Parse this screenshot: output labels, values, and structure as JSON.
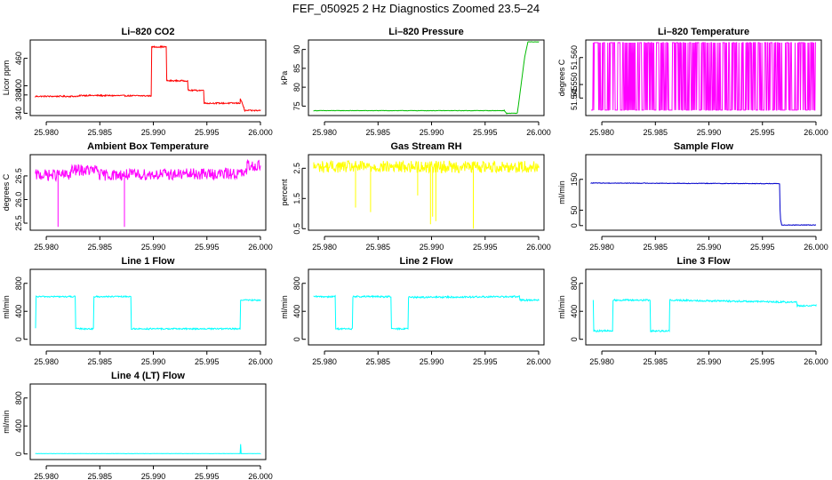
{
  "title": "FEF_050925  2 Hz Diagnostics Zoomed 23.5–24",
  "chart_data": [
    {
      "type": "line",
      "title": "Li–820 CO2",
      "ylabel": "Licor ppm",
      "color": "#ff0000",
      "xlim": [
        25.9785,
        26.0005
      ],
      "ylim": [
        335,
        500
      ],
      "xticks": [
        "25.980",
        "25.985",
        "25.990",
        "25.995",
        "26.000"
      ],
      "yticks": [
        "340",
        "380",
        "400",
        "460"
      ],
      "ytick_values": [
        340,
        380,
        400,
        460
      ],
      "series": [
        {
          "noise": 1.5,
          "x": [
            25.979,
            25.983,
            25.9832,
            25.9898,
            25.98985,
            25.9912,
            25.99125,
            25.9932,
            25.99325,
            25.9947,
            25.99475,
            25.9981,
            25.99812,
            25.99845,
            25.9985,
            26.0
          ],
          "y": [
            377,
            377,
            379,
            378,
            485,
            485,
            411,
            411,
            390,
            390,
            362,
            362,
            372,
            353,
            346,
            346
          ]
        }
      ]
    },
    {
      "type": "line",
      "title": "Li–820 Pressure",
      "ylabel": "kPa",
      "color": "#00bb00",
      "xlim": [
        25.9785,
        26.0005
      ],
      "ylim": [
        72.5,
        92.5
      ],
      "xticks": [
        "25.980",
        "25.985",
        "25.990",
        "25.995",
        "26.000"
      ],
      "yticks": [
        "75",
        "80",
        "85",
        "90"
      ],
      "ytick_values": [
        75,
        80,
        85,
        90
      ],
      "series": [
        {
          "noise": 0.05,
          "x": [
            25.979,
            25.9968,
            25.997,
            25.998,
            25.9981,
            25.9987,
            25.999,
            26.0
          ],
          "y": [
            73.8,
            73.8,
            73.1,
            73.1,
            75,
            88,
            92,
            92
          ]
        }
      ]
    },
    {
      "type": "line",
      "title": "Li–820 Temperature",
      "ylabel": "degrees C",
      "color": "#ff00ff",
      "xlim": [
        25.9785,
        26.0005
      ],
      "ylim": [
        51.5385,
        51.5665
      ],
      "xticks": [
        "25.980",
        "25.985",
        "25.990",
        "25.995",
        "26.000"
      ],
      "yticks": [
        "51.545",
        "51.550",
        "51.560"
      ],
      "ytick_values": [
        51.545,
        51.55,
        51.56
      ],
      "series": [
        {
          "pattern": "toggle",
          "low": 51.5405,
          "high": 51.5655,
          "x": [
            25.979,
            26.0
          ],
          "y": [
            51.5405,
            51.5655
          ]
        }
      ]
    },
    {
      "type": "line",
      "title": "Ambient Box Temperature",
      "ylabel": "degrees C",
      "color": "#ff00ff",
      "xlim": [
        25.9785,
        26.0005
      ],
      "ylim": [
        25.35,
        26.95
      ],
      "xticks": [
        "25.980",
        "25.985",
        "25.990",
        "25.995",
        "26.000"
      ],
      "yticks": [
        "25.5",
        "26.0",
        "26.5"
      ],
      "ytick_values": [
        25.5,
        26.0,
        26.5
      ],
      "series": [
        {
          "noise": 0.12,
          "x": [
            25.979,
            25.9822,
            25.98235,
            25.9848,
            25.98495,
            25.9987,
            25.99875,
            26.0
          ],
          "y": [
            26.52,
            26.52,
            26.62,
            26.62,
            26.52,
            26.55,
            26.72,
            26.72
          ],
          "spikes": [
            [
              25.9811,
              25.42
            ],
            [
              25.9873,
              25.42
            ]
          ]
        }
      ]
    },
    {
      "type": "line",
      "title": "Gas Stream RH",
      "ylabel": "percent",
      "color": "#ffff00",
      "xlim": [
        25.9785,
        26.0005
      ],
      "ylim": [
        0.45,
        2.95
      ],
      "xticks": [
        "25.980",
        "25.985",
        "25.990",
        "25.995",
        "26.000"
      ],
      "yticks": [
        "0.5",
        "1.5",
        "2.5"
      ],
      "ytick_values": [
        0.5,
        1.5,
        2.5
      ],
      "series": [
        {
          "noise": 0.2,
          "x": [
            25.979,
            26.0
          ],
          "y": [
            2.55,
            2.55
          ],
          "spikes": [
            [
              25.9829,
              1.2
            ],
            [
              25.9843,
              1.05
            ],
            [
              25.9887,
              1.6
            ],
            [
              25.9899,
              0.65
            ],
            [
              25.9901,
              0.9
            ],
            [
              25.9904,
              0.75
            ],
            [
              25.9939,
              0.5
            ]
          ]
        }
      ]
    },
    {
      "type": "line",
      "title": "Sample Flow",
      "ylabel": "ml/min",
      "color": "#0000cc",
      "xlim": [
        25.9785,
        26.0005
      ],
      "ylim": [
        -15,
        230
      ],
      "xticks": [
        "25.980",
        "25.985",
        "25.990",
        "25.995",
        "26.000"
      ],
      "yticks": [
        "0",
        "50",
        "150"
      ],
      "ytick_values": [
        0,
        50,
        150
      ],
      "series": [
        {
          "noise": 1,
          "x": [
            25.979,
            25.9966,
            25.99665,
            25.9967,
            25.9968,
            26.0
          ],
          "y": [
            138,
            136,
            50,
            18,
            2,
            2
          ]
        }
      ]
    },
    {
      "type": "line",
      "title": "Line 1 Flow",
      "ylabel": "ml/min",
      "color": "#00ffff",
      "xlim": [
        25.9785,
        26.0005
      ],
      "ylim": [
        -80,
        1000
      ],
      "xticks": [
        "25.980",
        "25.985",
        "25.990",
        "25.995",
        "26.000"
      ],
      "yticks": [
        "0",
        "400",
        "800"
      ],
      "ytick_values": [
        0,
        400,
        800
      ],
      "series": [
        {
          "noise": 10,
          "x": [
            25.979,
            25.97905,
            25.9827,
            25.98275,
            25.9844,
            25.98445,
            25.9879,
            25.98795,
            25.9981,
            25.99815,
            26.0
          ],
          "y": [
            150,
            610,
            610,
            150,
            150,
            610,
            610,
            150,
            150,
            560,
            560
          ]
        }
      ]
    },
    {
      "type": "line",
      "title": "Line 2 Flow",
      "ylabel": "ml/min",
      "color": "#00ffff",
      "xlim": [
        25.9785,
        26.0005
      ],
      "ylim": [
        -80,
        1000
      ],
      "xticks": [
        "25.980",
        "25.985",
        "25.990",
        "25.995",
        "26.000"
      ],
      "yticks": [
        "0",
        "400",
        "800"
      ],
      "ytick_values": [
        0,
        400,
        800
      ],
      "series": [
        {
          "noise": 12,
          "x": [
            25.979,
            25.981,
            25.98105,
            25.9826,
            25.98265,
            25.9862,
            25.98625,
            25.9878,
            25.98785,
            25.9982,
            25.99825,
            26.0
          ],
          "y": [
            610,
            610,
            150,
            150,
            610,
            610,
            150,
            150,
            600,
            610,
            560,
            560
          ]
        }
      ]
    },
    {
      "type": "line",
      "title": "Line 3 Flow",
      "ylabel": "ml/min",
      "color": "#00ffff",
      "xlim": [
        25.9785,
        26.0005
      ],
      "ylim": [
        -80,
        1000
      ],
      "xticks": [
        "25.980",
        "25.985",
        "25.990",
        "25.995",
        "26.000"
      ],
      "yticks": [
        "0",
        "400",
        "800"
      ],
      "ytick_values": [
        0,
        400,
        800
      ],
      "series": [
        {
          "noise": 12,
          "x": [
            25.9792,
            25.97925,
            25.981,
            25.98105,
            25.9845,
            25.98455,
            25.9863,
            25.98635,
            25.9982,
            25.99825,
            26.0
          ],
          "y": [
            560,
            120,
            120,
            560,
            560,
            120,
            120,
            560,
            530,
            480,
            480
          ]
        }
      ]
    },
    {
      "type": "line",
      "title": "Line 4 (LT) Flow",
      "ylabel": "ml/min",
      "color": "#00ffff",
      "xlim": [
        25.9785,
        26.0005
      ],
      "ylim": [
        -80,
        1000
      ],
      "xticks": [
        "25.980",
        "25.985",
        "25.990",
        "25.995",
        "26.000"
      ],
      "yticks": [
        "0",
        "400",
        "800"
      ],
      "ytick_values": [
        0,
        400,
        800
      ],
      "series": [
        {
          "noise": 2,
          "x": [
            25.979,
            25.9981,
            25.99815,
            25.9982,
            26.0
          ],
          "y": [
            5,
            5,
            140,
            5,
            5
          ]
        }
      ]
    }
  ]
}
